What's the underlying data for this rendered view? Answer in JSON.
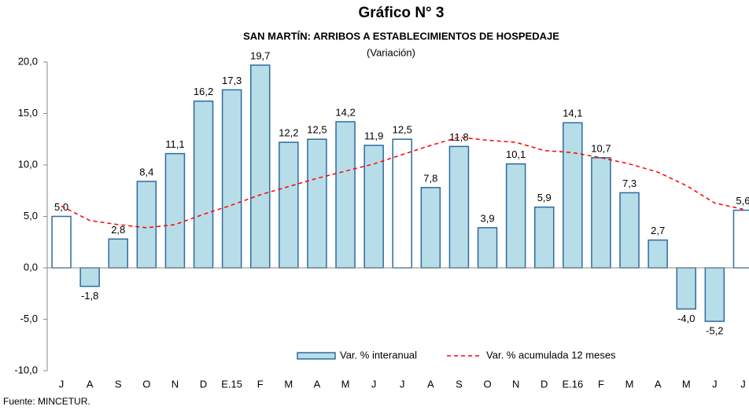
{
  "chart_data": {
    "type": "bar_line",
    "title": "Gráfico N° 3",
    "subtitle": "SAN MARTÍN: ARRIBOS A ESTABLECIMIENTOS DE HOSPEDAJE",
    "unit_note": "(Variación)",
    "source": "Fuente: MINCETUR.",
    "categories": [
      "J",
      "A",
      "S",
      "O",
      "N",
      "D",
      "E.15",
      "F",
      "M",
      "A",
      "M",
      "J",
      "J",
      "A",
      "S",
      "O",
      "N",
      "D",
      "E.16",
      "F",
      "M",
      "A",
      "M",
      "J",
      "J"
    ],
    "series": [
      {
        "name": "Var. % interanual",
        "type": "bar",
        "color": "#b7dde8",
        "border_color": "#2e6b9e",
        "colors": [
          "#ffffff",
          "#b7dde8",
          "#b7dde8",
          "#b7dde8",
          "#b7dde8",
          "#b7dde8",
          "#b7dde8",
          "#b7dde8",
          "#b7dde8",
          "#b7dde8",
          "#b7dde8",
          "#b7dde8",
          "#ffffff",
          "#b7dde8",
          "#b7dde8",
          "#b7dde8",
          "#b7dde8",
          "#b7dde8",
          "#b7dde8",
          "#b7dde8",
          "#b7dde8",
          "#b7dde8",
          "#b7dde8",
          "#b7dde8",
          "#ffffff"
        ],
        "values": [
          5.0,
          -1.8,
          2.8,
          8.4,
          11.1,
          16.2,
          17.3,
          19.7,
          12.2,
          12.5,
          14.2,
          11.9,
          12.5,
          7.8,
          11.8,
          3.9,
          10.1,
          5.9,
          14.1,
          10.7,
          7.3,
          2.7,
          -4.0,
          -5.2,
          5.6
        ],
        "value_labels": [
          "5,0",
          "-1,8",
          "2,8",
          "8,4",
          "11,1",
          "16,2",
          "17,3",
          "19,7",
          "12,2",
          "12,5",
          "14,2",
          "11,9",
          "12,5",
          "7,8",
          "11,8",
          "3,9",
          "10,1",
          "5,9",
          "14,1",
          "10,7",
          "7,3",
          "2,7",
          "-4,0",
          "-5,2",
          "5,6"
        ]
      },
      {
        "name": "Var. % acumulada 12 meses",
        "type": "line",
        "dashed": true,
        "color": "#ff0000",
        "values": [
          6.0,
          4.6,
          4.2,
          3.9,
          4.2,
          5.2,
          6.1,
          7.1,
          7.9,
          8.7,
          9.4,
          10.1,
          11.0,
          11.9,
          12.7,
          12.4,
          12.2,
          11.4,
          11.2,
          10.7,
          10.1,
          9.3,
          8.0,
          6.3,
          5.7
        ]
      }
    ],
    "ylim": [
      -10,
      20
    ],
    "yticks": [
      {
        "value": -10,
        "label": "-10,0"
      },
      {
        "value": -5,
        "label": "-5,0"
      },
      {
        "value": 0,
        "label": "0,0"
      },
      {
        "value": 5,
        "label": "5,0"
      },
      {
        "value": 10,
        "label": "10,0"
      },
      {
        "value": 15,
        "label": "15,0"
      },
      {
        "value": 20,
        "label": "20,0"
      }
    ],
    "grid": false,
    "legend": "bottom-center"
  }
}
